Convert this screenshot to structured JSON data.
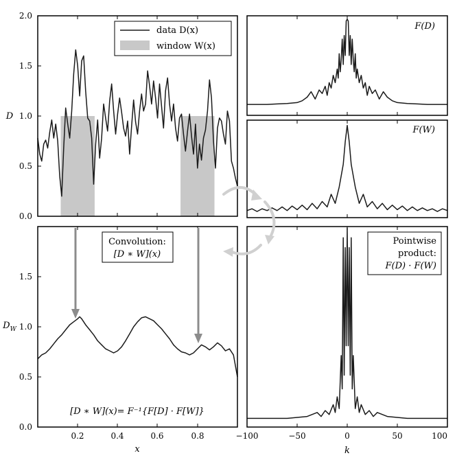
{
  "chart_data": [
    {
      "id": "data_panel",
      "type": "area",
      "ylabel": "D",
      "xlim": [
        0,
        1
      ],
      "ylim": [
        0,
        2.0
      ],
      "yticks": [
        "0.0",
        "0.5",
        "1.0",
        "1.5",
        "2.0"
      ],
      "legend": {
        "position": "top-right",
        "entries": [
          "data D(x)",
          "window W(x)"
        ]
      },
      "windows": [
        {
          "x0": 0.115,
          "x1": 0.285,
          "height": 1.0
        },
        {
          "x0": 0.715,
          "x1": 0.885,
          "height": 1.0
        }
      ],
      "series": [
        {
          "x": [
            0.0,
            0.01,
            0.02,
            0.03,
            0.04,
            0.05,
            0.06,
            0.07,
            0.08,
            0.09,
            0.1,
            0.11,
            0.12,
            0.13,
            0.14,
            0.15,
            0.16,
            0.17,
            0.18,
            0.19,
            0.2,
            0.21,
            0.22,
            0.23,
            0.24,
            0.25,
            0.26,
            0.27,
            0.28,
            0.29,
            0.3,
            0.31,
            0.32,
            0.33,
            0.34,
            0.35,
            0.36,
            0.37,
            0.38,
            0.39,
            0.4,
            0.41,
            0.42,
            0.43,
            0.44,
            0.45,
            0.46,
            0.47,
            0.48,
            0.49,
            0.5,
            0.51,
            0.52,
            0.53,
            0.54,
            0.55,
            0.56,
            0.57,
            0.58,
            0.59,
            0.6,
            0.61,
            0.62,
            0.63,
            0.64,
            0.65,
            0.66,
            0.67,
            0.68,
            0.69,
            0.7,
            0.71,
            0.72,
            0.73,
            0.74,
            0.75,
            0.76,
            0.77,
            0.78,
            0.79,
            0.8,
            0.81,
            0.82,
            0.83,
            0.84,
            0.85,
            0.86,
            0.87,
            0.88,
            0.89,
            0.9,
            0.91,
            0.92,
            0.93,
            0.94,
            0.95,
            0.96,
            0.97,
            0.98,
            0.99,
            1.0
          ],
          "values": [
            0.78,
            0.62,
            0.55,
            0.72,
            0.76,
            0.68,
            0.84,
            0.96,
            0.78,
            0.92,
            0.75,
            0.4,
            0.2,
            0.68,
            1.08,
            0.92,
            0.78,
            1.05,
            1.42,
            1.66,
            1.5,
            1.2,
            1.55,
            1.6,
            1.25,
            0.98,
            0.95,
            0.78,
            0.32,
            0.72,
            0.96,
            0.58,
            0.78,
            1.12,
            0.98,
            0.85,
            1.15,
            1.32,
            1.05,
            0.82,
            1.02,
            1.18,
            1.04,
            0.88,
            0.8,
            0.95,
            0.62,
            0.9,
            1.16,
            0.94,
            0.82,
            1.05,
            1.22,
            1.05,
            1.12,
            1.45,
            1.3,
            1.12,
            1.35,
            1.18,
            0.98,
            1.32,
            1.1,
            0.88,
            1.25,
            1.38,
            1.12,
            0.95,
            1.12,
            0.88,
            0.75,
            0.98,
            1.02,
            0.82,
            0.65,
            0.85,
            1.02,
            0.8,
            0.62,
            0.92,
            0.48,
            0.72,
            0.56,
            0.78,
            0.86,
            1.05,
            1.36,
            1.18,
            0.75,
            0.48,
            0.88,
            0.98,
            0.95,
            0.82,
            0.72,
            1.05,
            0.95,
            0.55,
            0.48,
            0.38,
            0.3
          ]
        }
      ]
    },
    {
      "id": "convolution_panel",
      "type": "line",
      "ylabel": "D_W",
      "xlabel": "x",
      "xlim": [
        0,
        1
      ],
      "ylim": [
        0,
        2.0
      ],
      "xticks": [
        "0.2",
        "0.4",
        "0.6",
        "0.8"
      ],
      "yticks": [
        "0.0",
        "0.5",
        "1.0",
        "1.5"
      ],
      "annotations": [
        "Convolution:",
        "[D ∗ W](x)",
        "[D ∗ W](x)= F⁻¹{F[D] · F[W]}"
      ],
      "series": [
        {
          "x": [
            0.0,
            0.02,
            0.04,
            0.06,
            0.08,
            0.1,
            0.12,
            0.14,
            0.16,
            0.18,
            0.2,
            0.21,
            0.22,
            0.24,
            0.26,
            0.28,
            0.3,
            0.32,
            0.34,
            0.36,
            0.38,
            0.4,
            0.42,
            0.44,
            0.46,
            0.48,
            0.5,
            0.52,
            0.54,
            0.56,
            0.58,
            0.6,
            0.62,
            0.64,
            0.66,
            0.68,
            0.7,
            0.72,
            0.74,
            0.76,
            0.78,
            0.8,
            0.82,
            0.84,
            0.86,
            0.88,
            0.9,
            0.92,
            0.94,
            0.96,
            0.98,
            1.0
          ],
          "values": [
            0.68,
            0.72,
            0.74,
            0.78,
            0.83,
            0.88,
            0.92,
            0.97,
            1.02,
            1.05,
            1.08,
            1.1,
            1.08,
            1.02,
            0.97,
            0.92,
            0.86,
            0.82,
            0.78,
            0.76,
            0.74,
            0.76,
            0.8,
            0.86,
            0.93,
            1.0,
            1.05,
            1.09,
            1.1,
            1.08,
            1.06,
            1.02,
            0.98,
            0.93,
            0.88,
            0.82,
            0.78,
            0.75,
            0.74,
            0.72,
            0.74,
            0.78,
            0.82,
            0.8,
            0.77,
            0.8,
            0.84,
            0.81,
            0.76,
            0.78,
            0.72,
            0.5
          ]
        }
      ]
    },
    {
      "id": "ft_data_panel",
      "type": "line",
      "annotations": [
        "F(D)"
      ],
      "xlim": [
        -100,
        100
      ],
      "ylim": [
        0,
        1
      ],
      "series": [
        {
          "x": [
            -100,
            -90,
            -80,
            -70,
            -60,
            -50,
            -45,
            -40,
            -36,
            -32,
            -28,
            -25,
            -22,
            -20,
            -18,
            -16,
            -14,
            -12,
            -10,
            -9,
            -8,
            -7,
            -6,
            -5,
            -4,
            -3,
            -2,
            -1,
            0,
            1,
            2,
            3,
            4,
            5,
            6,
            7,
            8,
            9,
            10,
            12,
            14,
            16,
            18,
            20,
            22,
            25,
            28,
            32,
            36,
            40,
            45,
            50,
            60,
            70,
            80,
            90,
            100
          ],
          "values": [
            0.06,
            0.06,
            0.06,
            0.065,
            0.07,
            0.08,
            0.1,
            0.14,
            0.2,
            0.12,
            0.22,
            0.18,
            0.26,
            0.16,
            0.3,
            0.24,
            0.38,
            0.3,
            0.45,
            0.35,
            0.62,
            0.42,
            0.55,
            0.78,
            0.5,
            0.82,
            0.6,
            0.98,
            1.0,
            0.98,
            0.6,
            0.82,
            0.5,
            0.78,
            0.55,
            0.42,
            0.62,
            0.35,
            0.45,
            0.3,
            0.38,
            0.24,
            0.3,
            0.16,
            0.26,
            0.18,
            0.22,
            0.12,
            0.2,
            0.14,
            0.1,
            0.08,
            0.07,
            0.065,
            0.06,
            0.06,
            0.06
          ]
        }
      ]
    },
    {
      "id": "ft_window_panel",
      "type": "line",
      "annotations": [
        "F(W)"
      ],
      "xlim": [
        -100,
        100
      ],
      "ylim": [
        0,
        1
      ],
      "series": [
        {
          "x": [
            -100,
            -95,
            -90,
            -85,
            -80,
            -75,
            -70,
            -65,
            -60,
            -55,
            -50,
            -45,
            -40,
            -35,
            -30,
            -25,
            -20,
            -16,
            -12,
            -8,
            -4,
            -2,
            0,
            2,
            4,
            8,
            12,
            16,
            20,
            25,
            30,
            35,
            40,
            45,
            50,
            55,
            60,
            65,
            70,
            75,
            80,
            85,
            90,
            95,
            100
          ],
          "values": [
            0.04,
            0.06,
            0.03,
            0.06,
            0.04,
            0.07,
            0.04,
            0.08,
            0.04,
            0.09,
            0.05,
            0.1,
            0.05,
            0.12,
            0.06,
            0.14,
            0.08,
            0.22,
            0.12,
            0.3,
            0.55,
            0.8,
            0.98,
            0.8,
            0.55,
            0.3,
            0.12,
            0.22,
            0.08,
            0.14,
            0.06,
            0.12,
            0.05,
            0.1,
            0.05,
            0.09,
            0.04,
            0.08,
            0.04,
            0.07,
            0.04,
            0.06,
            0.03,
            0.06,
            0.04
          ]
        }
      ]
    },
    {
      "id": "product_panel",
      "type": "line",
      "xlabel": "k",
      "xlim": [
        -100,
        100
      ],
      "ylim": [
        0,
        1
      ],
      "xticks": [
        "−100",
        "−50",
        "0",
        "50",
        "100"
      ],
      "annotations": [
        "Pointwise",
        "product:",
        "F(D) · F(W)"
      ],
      "series": [
        {
          "x": [
            -100,
            -80,
            -60,
            -50,
            -40,
            -35,
            -30,
            -26,
            -22,
            -18,
            -14,
            -12,
            -10,
            -8,
            -6,
            -5,
            -4,
            -3,
            -2,
            -1,
            0,
            1,
            2,
            3,
            4,
            5,
            6,
            8,
            10,
            12,
            14,
            18,
            22,
            26,
            30,
            35,
            40,
            50,
            60,
            80,
            100
          ],
          "values": [
            0.03,
            0.03,
            0.03,
            0.035,
            0.04,
            0.05,
            0.06,
            0.04,
            0.07,
            0.05,
            0.1,
            0.06,
            0.14,
            0.08,
            0.35,
            0.18,
            0.95,
            0.25,
            0.9,
            0.4,
            1.0,
            0.4,
            0.9,
            0.25,
            0.95,
            0.18,
            0.35,
            0.08,
            0.14,
            0.06,
            0.1,
            0.05,
            0.07,
            0.04,
            0.06,
            0.05,
            0.04,
            0.035,
            0.03,
            0.03,
            0.03
          ]
        }
      ]
    }
  ],
  "labels": {
    "legend_data": "data D(x)",
    "legend_window": "window W(x)",
    "ylabel_top": "D",
    "ylabel_bottom": "D",
    "ylabel_bottom_sub": "W",
    "xlabel_left": "x",
    "xlabel_right": "k",
    "conv_title": "Convolution:",
    "conv_expr": "[D ∗ W](x)",
    "formula": "[D ∗ W](x)= F⁻¹{F[D] · F[W]}",
    "ft_d": "F(D)",
    "ft_w": "F(W)",
    "prod_1": "Pointwise",
    "prod_2": "product:",
    "prod_3": "F(D) · F(W)"
  },
  "colors": {
    "line": "#1a1a1a",
    "window": "#c8c8c8",
    "arrow": "#8c8c8c",
    "cycle_arrow": "#d0d0d0"
  }
}
